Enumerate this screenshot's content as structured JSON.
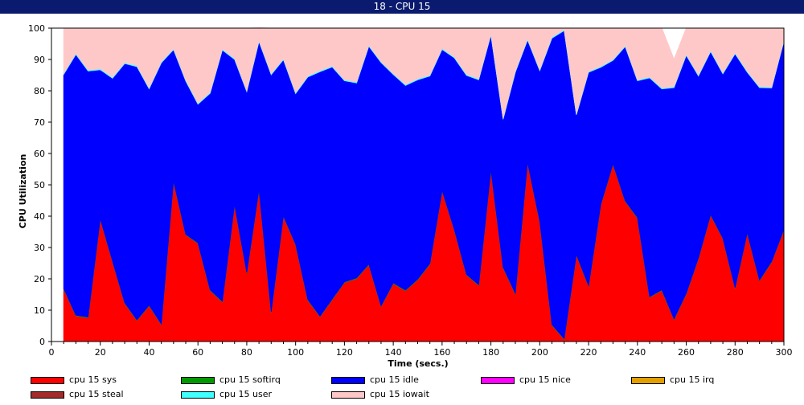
{
  "window": {
    "title": "18 - CPU 15"
  },
  "chart_data": {
    "type": "area",
    "stacked": true,
    "title": "18 - CPU 15",
    "xlabel": "Time (secs.)",
    "ylabel": "CPU Utilization",
    "xlim": [
      0,
      300
    ],
    "ylim": [
      0,
      100
    ],
    "xticks": [
      0,
      20,
      40,
      60,
      80,
      100,
      120,
      140,
      160,
      180,
      200,
      220,
      240,
      260,
      280,
      300
    ],
    "yticks": [
      0,
      10,
      20,
      30,
      40,
      50,
      60,
      70,
      80,
      90,
      100
    ],
    "grid": false,
    "legend_position": "bottom",
    "x": [
      5,
      10,
      15,
      20,
      25,
      30,
      35,
      40,
      45,
      50,
      55,
      60,
      65,
      70,
      75,
      80,
      85,
      90,
      95,
      100,
      105,
      110,
      115,
      120,
      125,
      130,
      135,
      140,
      145,
      150,
      155,
      160,
      165,
      170,
      175,
      180,
      185,
      190,
      195,
      200,
      205,
      210,
      215,
      220,
      225,
      230,
      235,
      240,
      245,
      250,
      255,
      260,
      265,
      270,
      275,
      280,
      285,
      290,
      295,
      300
    ],
    "series": [
      {
        "name": "cpu 15 sys",
        "color": "#ff0000",
        "values": [
          16.8,
          8.2,
          7.6,
          39,
          25.5,
          12.2,
          6.7,
          11.4,
          5.4,
          51,
          34,
          31.3,
          16.3,
          12.6,
          43.5,
          21.8,
          48.3,
          9.3,
          39.9,
          30.9,
          13.2,
          7.9,
          13.4,
          18.8,
          20.1,
          24.5,
          11.2,
          18.5,
          16.2,
          19.7,
          24.7,
          48,
          35.6,
          21.2,
          17.9,
          54.6,
          23.5,
          15.2,
          57,
          38.2,
          5.2,
          0.7,
          27.6,
          17.6,
          43.6,
          56.5,
          44.7,
          39.4,
          14.1,
          16.3,
          7,
          15.2,
          26.5,
          40.3,
          32.8,
          17,
          34.5,
          19.4,
          25.4,
          35.6
        ]
      },
      {
        "name": "cpu 15 softirq",
        "color": "#009a00",
        "values": [
          0.2,
          0.2,
          0.2,
          0.2,
          0.2,
          0.2,
          0.2,
          0.2,
          0.2,
          0.2,
          0.2,
          0.2,
          0.2,
          0.2,
          0.2,
          0.2,
          0.2,
          0.2,
          0.2,
          0.2,
          0.2,
          0.2,
          0.2,
          0.2,
          0.2,
          0.2,
          0.2,
          0.2,
          0.2,
          0.2,
          0.2,
          0.2,
          0.2,
          0.2,
          0.2,
          0.2,
          0.2,
          0.2,
          0.2,
          0.2,
          0.2,
          0.2,
          0.2,
          0.2,
          0.2,
          0.2,
          0.2,
          0.2,
          0.2,
          0.2,
          0.2,
          0.2,
          0.2,
          0.2,
          0.2,
          0.2,
          0.2,
          0.2,
          0.2,
          0.2
        ]
      },
      {
        "name": "cpu 15 idle",
        "color": "#0000ff",
        "values": [
          68.2,
          83.2,
          78.5,
          47.5,
          58.3,
          76.3,
          80.8,
          69,
          83.3,
          41.9,
          48.9,
          44.2,
          62.7,
          80.2,
          46.3,
          57.7,
          47.2,
          75.6,
          49.8,
          48,
          71,
          78,
          74,
          64.2,
          62.2,
          69.5,
          77.6,
          66.5,
          65.3,
          63.6,
          59.8,
          45,
          54.7,
          63.5,
          65.4,
          43,
          47.2,
          70.5,
          39,
          48,
          91.4,
          98.3,
          44.5,
          68.1,
          43.7,
          33,
          49.2,
          43.6,
          69.8,
          64.1,
          73.8,
          75.9,
          58,
          52,
          52.4,
          74.6,
          51.2,
          61.4,
          55.3,
          60
        ]
      },
      {
        "name": "cpu 15 nice",
        "color": "#ff00ff",
        "values": [
          0,
          0,
          0,
          0,
          0,
          0,
          0,
          0,
          0,
          0,
          0,
          0,
          0,
          0,
          0,
          0,
          0,
          0,
          0,
          0,
          0,
          0,
          0,
          0,
          0,
          0,
          0,
          0,
          0,
          0,
          0,
          0,
          0,
          0,
          0,
          0,
          0,
          0,
          0,
          0,
          0,
          0,
          0,
          0,
          0,
          0,
          0,
          0,
          0,
          0,
          0,
          0,
          0,
          0,
          0,
          0,
          0,
          0,
          0,
          0
        ]
      },
      {
        "name": "cpu 15 irq",
        "color": "#e0a000",
        "values": [
          0,
          0,
          0,
          0,
          0,
          0,
          0,
          0,
          0,
          0,
          0,
          0,
          0,
          0,
          0,
          0,
          0,
          0,
          0,
          0,
          0,
          0,
          0,
          0,
          0,
          0,
          0,
          0,
          0,
          0,
          0,
          0,
          0,
          0,
          0,
          0,
          0,
          0,
          0,
          0,
          0,
          0,
          0,
          0,
          0,
          0,
          0,
          0,
          0,
          0,
          0,
          0,
          0,
          0,
          0,
          0,
          0,
          0,
          0,
          0
        ]
      },
      {
        "name": "cpu 15 steal",
        "color": "#a52a2a",
        "values": [
          0,
          0,
          0,
          0,
          0,
          0,
          0,
          0,
          0,
          0,
          0,
          0,
          0,
          0,
          0,
          0,
          0,
          0,
          0,
          0,
          0,
          0,
          0,
          0,
          0,
          0,
          0,
          0,
          0,
          0,
          0,
          0,
          0,
          0,
          0,
          0,
          0,
          0,
          0,
          0,
          0,
          0,
          0,
          0,
          0,
          0,
          0,
          0,
          0,
          0,
          0,
          0,
          0,
          0,
          0,
          0,
          0,
          0,
          0,
          0
        ]
      },
      {
        "name": "cpu 15 user",
        "color": "#40ffff",
        "values": [
          0.3,
          0.3,
          0.3,
          0.3,
          0.3,
          0.3,
          0.3,
          0.3,
          0.3,
          0.3,
          0.3,
          0.3,
          0.3,
          0.3,
          0.3,
          0.3,
          0.3,
          0.3,
          0.3,
          0.3,
          0.3,
          0.3,
          0.3,
          0.3,
          0.3,
          0.3,
          0.3,
          0.3,
          0.3,
          0.3,
          0.3,
          0.3,
          0.3,
          0.3,
          0.3,
          0.3,
          0.3,
          0.3,
          0.3,
          0.3,
          0.3,
          0.3,
          0.3,
          0.3,
          0.3,
          0.3,
          0.3,
          0.3,
          0.3,
          0.3,
          0.3,
          0.3,
          0.3,
          0.3,
          0.3,
          0.3,
          0.3,
          0.3,
          0.3,
          0.3
        ]
      },
      {
        "name": "cpu 15 iowait",
        "color": "#ffc8c8",
        "values": [
          14.5,
          8.1,
          13.4,
          12.8,
          15.7,
          11,
          12,
          19.1,
          10.8,
          6.4,
          16.6,
          24,
          20.5,
          6.7,
          9.7,
          20,
          4.1,
          14.6,
          9.8,
          20.6,
          15.3,
          13.6,
          12.1,
          16.5,
          17.2,
          5.5,
          10.7,
          14.5,
          18,
          16.2,
          15,
          6.5,
          9.2,
          14.8,
          16.2,
          1.9,
          28.8,
          13.8,
          3.5,
          13.3,
          2.9,
          0.5,
          27.4,
          13.8,
          12.2,
          10,
          5.6,
          16.5,
          15.6,
          19.1,
          8.7,
          8.4,
          15,
          7.2,
          14.3,
          7.9,
          13.8,
          18.7,
          18.8,
          3.9
        ]
      }
    ]
  }
}
